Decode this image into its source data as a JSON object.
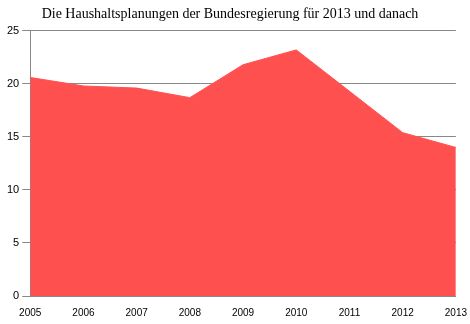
{
  "chart_data": {
    "type": "area",
    "title": "Die Haushaltsplanungen der Bundesregierung für 2013 und danach",
    "categories": [
      "2005",
      "2006",
      "2007",
      "2008",
      "2009",
      "2010",
      "2011",
      "2012",
      "2013"
    ],
    "values": [
      20.6,
      19.8,
      19.6,
      18.7,
      21.8,
      23.2,
      19.3,
      15.4,
      14.0
    ],
    "color": "#ff5050",
    "ylim": [
      0,
      25
    ],
    "yticks": [
      0,
      5,
      10,
      15,
      20,
      25
    ],
    "grid": true
  }
}
